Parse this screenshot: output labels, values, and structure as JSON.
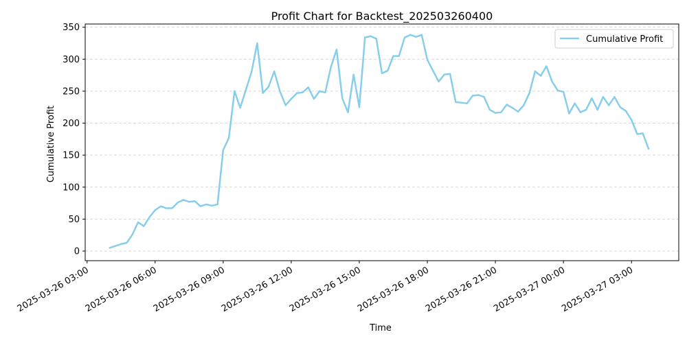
{
  "chart_data": {
    "type": "line",
    "title": "Profit Chart for Backtest_202503260400",
    "xlabel": "Time",
    "ylabel": "Cumulative Profit",
    "xlim": [
      "2025-03-26 02:55",
      "2025-03-27 05:05"
    ],
    "ylim": [
      -15,
      355
    ],
    "x_ticks": [
      "2025-03-26 03:00",
      "2025-03-26 06:00",
      "2025-03-26 09:00",
      "2025-03-26 12:00",
      "2025-03-26 15:00",
      "2025-03-26 18:00",
      "2025-03-26 21:00",
      "2025-03-27 00:00",
      "2025-03-27 03:00"
    ],
    "y_ticks": [
      0,
      50,
      100,
      150,
      200,
      250,
      300,
      350
    ],
    "grid": "horizontal dashed",
    "legend_position": "top-right",
    "line_color": "#87CEEB",
    "series": [
      {
        "name": "Cumulative Profit",
        "x": [
          "2025-03-26 04:00",
          "2025-03-26 04:15",
          "2025-03-26 04:30",
          "2025-03-26 04:45",
          "2025-03-26 05:00",
          "2025-03-26 05:15",
          "2025-03-26 05:30",
          "2025-03-26 05:45",
          "2025-03-26 06:00",
          "2025-03-26 06:15",
          "2025-03-26 06:30",
          "2025-03-26 06:45",
          "2025-03-26 07:00",
          "2025-03-26 07:15",
          "2025-03-26 07:30",
          "2025-03-26 07:45",
          "2025-03-26 08:00",
          "2025-03-26 08:15",
          "2025-03-26 08:30",
          "2025-03-26 08:45",
          "2025-03-26 09:00",
          "2025-03-26 09:15",
          "2025-03-26 09:30",
          "2025-03-26 09:45",
          "2025-03-26 10:00",
          "2025-03-26 10:15",
          "2025-03-26 10:30",
          "2025-03-26 10:45",
          "2025-03-26 11:00",
          "2025-03-26 11:15",
          "2025-03-26 11:30",
          "2025-03-26 11:45",
          "2025-03-26 12:00",
          "2025-03-26 12:15",
          "2025-03-26 12:30",
          "2025-03-26 12:45",
          "2025-03-26 13:00",
          "2025-03-26 13:15",
          "2025-03-26 13:30",
          "2025-03-26 13:45",
          "2025-03-26 14:00",
          "2025-03-26 14:15",
          "2025-03-26 14:30",
          "2025-03-26 14:45",
          "2025-03-26 15:00",
          "2025-03-26 15:15",
          "2025-03-26 15:30",
          "2025-03-26 15:45",
          "2025-03-26 16:00",
          "2025-03-26 16:15",
          "2025-03-26 16:30",
          "2025-03-26 16:45",
          "2025-03-26 17:00",
          "2025-03-26 17:15",
          "2025-03-26 17:30",
          "2025-03-26 17:45",
          "2025-03-26 18:00",
          "2025-03-26 18:15",
          "2025-03-26 18:30",
          "2025-03-26 18:45",
          "2025-03-26 19:00",
          "2025-03-26 19:15",
          "2025-03-26 19:30",
          "2025-03-26 19:45",
          "2025-03-26 20:00",
          "2025-03-26 20:15",
          "2025-03-26 20:30",
          "2025-03-26 20:45",
          "2025-03-26 21:00",
          "2025-03-26 21:15",
          "2025-03-26 21:30",
          "2025-03-26 21:45",
          "2025-03-26 22:00",
          "2025-03-26 22:15",
          "2025-03-26 22:30",
          "2025-03-26 22:45",
          "2025-03-26 23:00",
          "2025-03-26 23:15",
          "2025-03-26 23:30",
          "2025-03-26 23:45",
          "2025-03-27 00:00",
          "2025-03-27 00:15",
          "2025-03-27 00:30",
          "2025-03-27 00:45",
          "2025-03-27 01:00",
          "2025-03-27 01:15",
          "2025-03-27 01:30",
          "2025-03-27 01:45",
          "2025-03-27 02:00",
          "2025-03-27 02:15",
          "2025-03-27 02:30",
          "2025-03-27 02:45",
          "2025-03-27 03:00",
          "2025-03-27 03:15",
          "2025-03-27 03:30",
          "2025-03-27 03:45"
        ],
        "y": [
          5,
          8,
          11,
          13,
          26,
          45,
          39,
          53,
          64,
          70,
          67,
          67,
          76,
          80,
          77,
          78,
          70,
          73,
          71,
          73,
          158,
          177,
          250,
          224,
          252,
          280,
          325,
          247,
          257,
          281,
          250,
          228,
          238,
          247,
          248,
          256,
          238,
          250,
          248,
          288,
          315,
          239,
          217,
          276,
          225,
          334,
          336,
          332,
          278,
          282,
          305,
          305,
          334,
          338,
          335,
          338,
          299,
          282,
          265,
          276,
          277,
          233,
          232,
          231,
          243,
          244,
          241,
          221,
          216,
          217,
          229,
          224,
          218,
          228,
          247,
          281,
          274,
          289,
          265,
          251,
          249,
          215,
          231,
          217,
          221,
          239,
          221,
          241,
          228,
          241,
          225,
          219,
          205,
          183,
          184,
          160
        ]
      }
    ]
  }
}
